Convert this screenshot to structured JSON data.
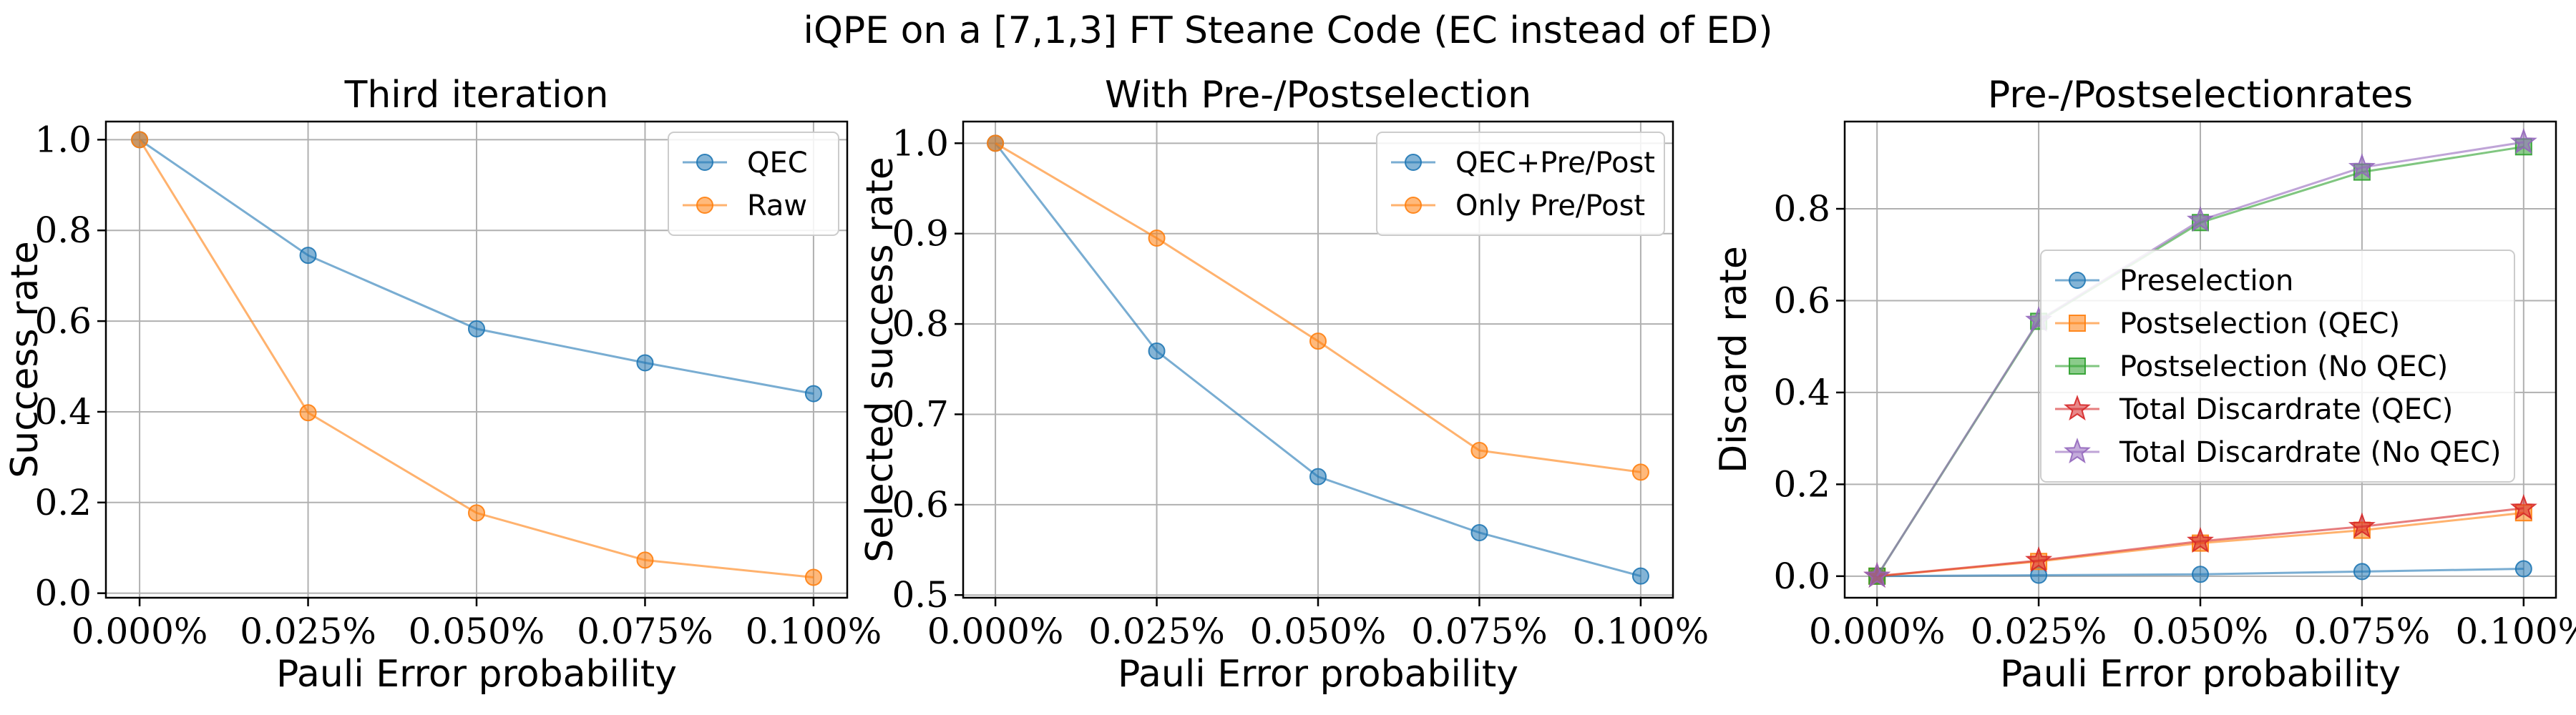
{
  "figure": {
    "suptitle": "iQPE on a [7,1,3] FT Steane Code (EC instead of ED)"
  },
  "colors": {
    "blue": "#1f77b4",
    "orange": "#ff7f0e",
    "green": "#2ca02c",
    "red": "#d62728",
    "purple": "#9467bd",
    "grid": "#b0b0b0"
  },
  "chart_data": [
    {
      "type": "line",
      "title": "Third iteration",
      "xlabel": "Pauli Error probability",
      "ylabel": "Success rate",
      "x": [
        0.0,
        0.025,
        0.05,
        0.075,
        0.1
      ],
      "xtick_labels": [
        "0.000%",
        "0.025%",
        "0.050%",
        "0.075%",
        "0.100%"
      ],
      "yticks": [
        0.0,
        0.2,
        0.4,
        0.6,
        0.8,
        1.0
      ],
      "ytick_labels": [
        "0.0",
        "0.2",
        "0.4",
        "0.6",
        "0.8",
        "1.0"
      ],
      "ylim": [
        -0.01,
        1.04
      ],
      "grid": true,
      "legend_position": "upper right",
      "series": [
        {
          "name": "QEC",
          "color": "blue",
          "marker": "circle",
          "values": [
            1.0,
            0.745,
            0.583,
            0.508,
            0.44
          ]
        },
        {
          "name": "Raw",
          "color": "orange",
          "marker": "circle",
          "values": [
            1.0,
            0.398,
            0.177,
            0.073,
            0.035
          ]
        }
      ]
    },
    {
      "type": "line",
      "title": "With Pre-/Postselection",
      "xlabel": "Pauli Error probability",
      "ylabel": "Selected success rate",
      "x": [
        0.0,
        0.025,
        0.05,
        0.075,
        0.1
      ],
      "xtick_labels": [
        "0.000%",
        "0.025%",
        "0.050%",
        "0.075%",
        "0.100%"
      ],
      "yticks": [
        0.5,
        0.6,
        0.7,
        0.8,
        0.9,
        1.0
      ],
      "ytick_labels": [
        "0.5",
        "0.6",
        "0.7",
        "0.8",
        "0.9",
        "1.0"
      ],
      "ylim": [
        0.497,
        1.024
      ],
      "grid": true,
      "legend_position": "upper right",
      "series": [
        {
          "name": "QEC+Pre/Post",
          "color": "blue",
          "marker": "circle",
          "values": [
            1.0,
            0.77,
            0.631,
            0.569,
            0.521
          ]
        },
        {
          "name": "Only Pre/Post",
          "color": "orange",
          "marker": "circle",
          "values": [
            1.0,
            0.895,
            0.781,
            0.66,
            0.636
          ]
        }
      ]
    },
    {
      "type": "line",
      "title": "Pre-/Postselectionrates",
      "xlabel": "Pauli Error probability",
      "ylabel": "Discard rate",
      "x": [
        0.0,
        0.025,
        0.05,
        0.075,
        0.1
      ],
      "xtick_labels": [
        "0.000%",
        "0.025%",
        "0.050%",
        "0.075%",
        "0.100%"
      ],
      "yticks": [
        0.0,
        0.2,
        0.4,
        0.6,
        0.8
      ],
      "ytick_labels": [
        "0.0",
        "0.2",
        "0.4",
        "0.6",
        "0.8"
      ],
      "ylim": [
        -0.047,
        0.99
      ],
      "grid": true,
      "legend_position": "center right",
      "series": [
        {
          "name": "Preselection",
          "color": "blue",
          "marker": "circle",
          "values": [
            0.0,
            0.002,
            0.004,
            0.01,
            0.016
          ]
        },
        {
          "name": "Postselection (QEC)",
          "color": "orange",
          "marker": "square",
          "values": [
            0.0,
            0.032,
            0.072,
            0.1,
            0.138
          ]
        },
        {
          "name": "Postselection (No QEC)",
          "color": "green",
          "marker": "square",
          "values": [
            0.0,
            0.555,
            0.77,
            0.88,
            0.935
          ]
        },
        {
          "name": "Total Discardrate (QEC)",
          "color": "red",
          "marker": "star",
          "values": [
            0.0,
            0.034,
            0.076,
            0.108,
            0.148
          ]
        },
        {
          "name": "Total Discardrate (No QEC)",
          "color": "purple",
          "marker": "star",
          "values": [
            0.0,
            0.557,
            0.775,
            0.89,
            0.945
          ]
        }
      ]
    }
  ]
}
